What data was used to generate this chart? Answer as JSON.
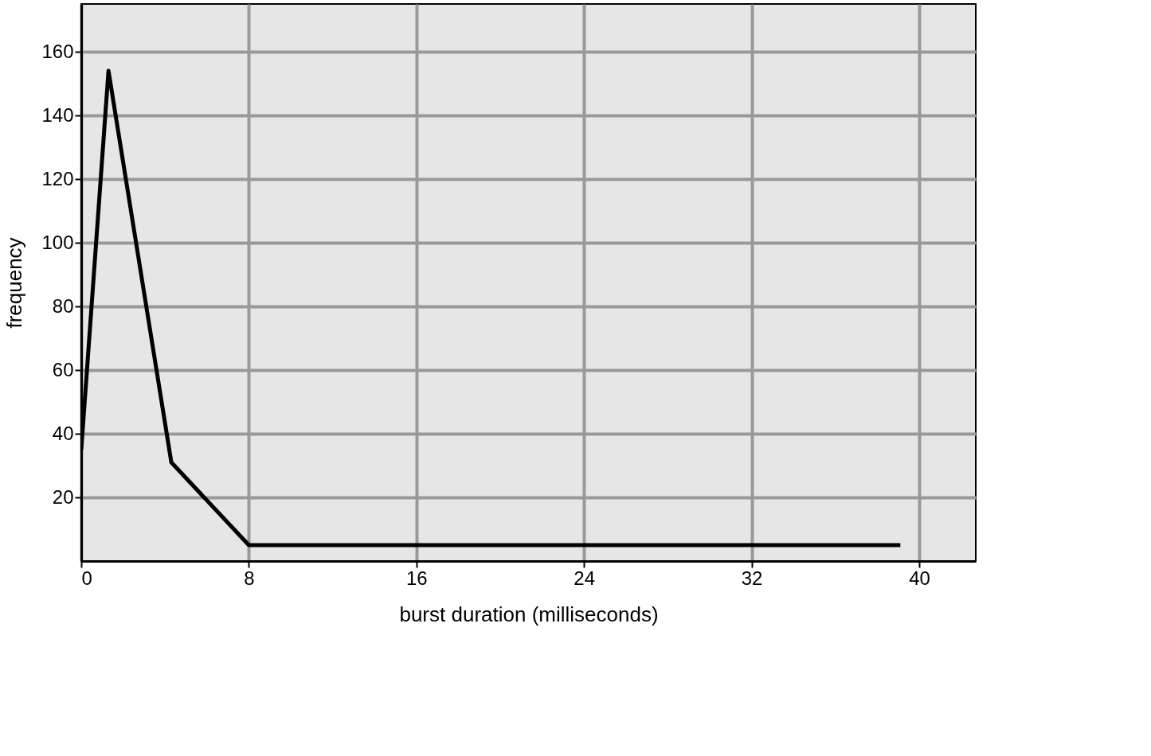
{
  "chart_data": {
    "type": "line",
    "xlabel": "burst duration (milliseconds)",
    "ylabel": "frequency",
    "x": [
      0,
      1.3,
      4.3,
      8,
      39.1
    ],
    "series": [
      {
        "color": "#000000",
        "values": [
          35,
          154,
          31,
          5,
          5
        ]
      }
    ],
    "xlim": [
      0,
      42.7
    ],
    "ylim": [
      0,
      175
    ],
    "xticks": [
      0,
      8,
      16,
      24,
      32,
      40
    ],
    "yticks": [
      20,
      40,
      60,
      80,
      100,
      120,
      140,
      160
    ],
    "grid": true,
    "marker": "none",
    "line_style": "solid"
  }
}
